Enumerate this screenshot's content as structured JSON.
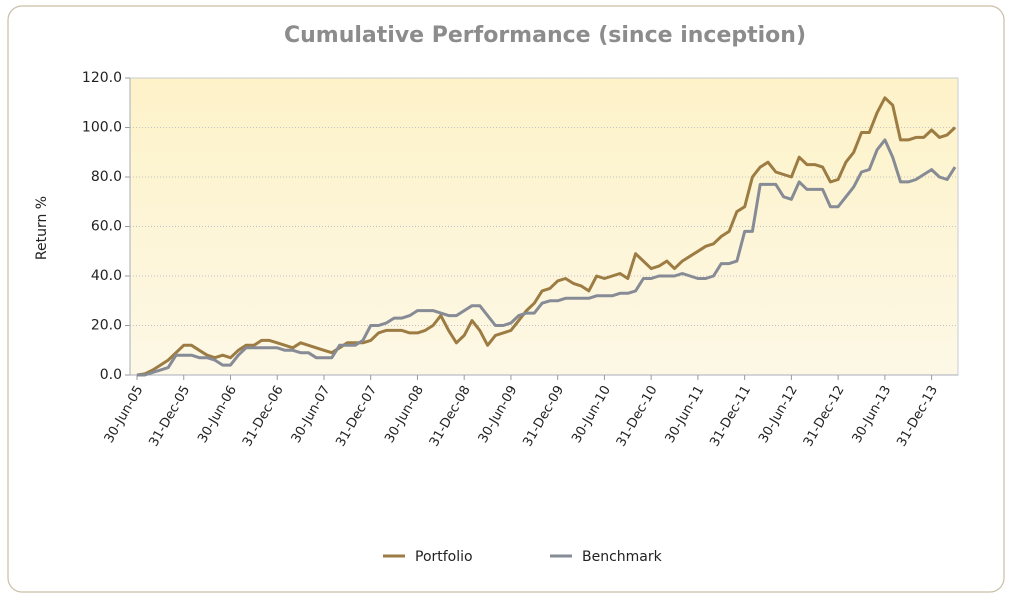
{
  "chart_data": {
    "type": "line",
    "title": "Cumulative Performance (since inception)",
    "y_label": "Return %",
    "categories": [
      "30-Jun-05",
      null,
      null,
      null,
      null,
      null,
      "31-Dec-05",
      null,
      null,
      null,
      null,
      null,
      "30-Jun-06",
      null,
      null,
      null,
      null,
      null,
      "31-Dec-06",
      null,
      null,
      null,
      null,
      null,
      "30-Jun-07",
      null,
      null,
      null,
      null,
      null,
      "31-Dec-07",
      null,
      null,
      null,
      null,
      null,
      "30-Jun-08",
      null,
      null,
      null,
      null,
      null,
      "31-Dec-08",
      null,
      null,
      null,
      null,
      null,
      "30-Jun-09",
      null,
      null,
      null,
      null,
      null,
      "31-Dec-09",
      null,
      null,
      null,
      null,
      null,
      "30-Jun-10",
      null,
      null,
      null,
      null,
      null,
      "31-Dec-10",
      null,
      null,
      null,
      null,
      null,
      "30-Jun-11",
      null,
      null,
      null,
      null,
      null,
      "31-Dec-11",
      null,
      null,
      null,
      null,
      null,
      "30-Jun-12",
      null,
      null,
      null,
      null,
      null,
      "31-Dec-12",
      null,
      null,
      null,
      null,
      null,
      "30-Jun-13",
      null,
      null,
      null,
      null,
      null,
      "31-Dec-13",
      null,
      null,
      null
    ],
    "series": [
      {
        "name": "Portfolio",
        "color": "#9c7c43",
        "values": [
          0,
          0.5,
          2,
          4,
          6,
          9,
          12,
          12,
          10,
          8,
          7,
          8,
          7,
          10,
          12,
          12,
          14,
          14,
          13,
          12,
          11,
          13,
          12,
          11,
          10,
          9,
          11,
          13,
          13,
          13,
          14,
          17,
          18,
          18,
          18,
          17,
          17,
          18,
          20,
          24,
          18,
          13,
          16,
          22,
          18,
          12,
          16,
          17,
          18,
          22,
          26,
          29,
          34,
          35,
          38,
          39,
          37,
          36,
          34,
          40,
          39,
          40,
          41,
          39,
          49,
          46,
          43,
          44,
          46,
          43,
          46,
          48,
          50,
          52,
          53,
          56,
          58,
          66,
          68,
          80,
          84,
          86,
          82,
          81,
          80,
          88,
          85,
          85,
          84,
          78,
          79,
          86,
          90,
          98,
          98,
          106,
          112,
          109,
          95,
          95,
          96,
          96,
          99,
          96,
          97,
          100
        ]
      },
      {
        "name": "Benchmark",
        "color": "#868b95",
        "values": [
          0,
          0,
          1,
          2,
          3,
          8,
          8,
          8,
          7,
          7,
          6,
          4,
          4,
          8,
          11,
          11,
          11,
          11,
          11,
          10,
          10,
          9,
          9,
          7,
          7,
          7,
          12,
          12,
          12,
          14,
          20,
          20,
          21,
          23,
          23,
          24,
          26,
          26,
          26,
          25,
          24,
          24,
          26,
          28,
          28,
          24,
          20,
          20,
          21,
          24,
          25,
          25,
          29,
          30,
          30,
          31,
          31,
          31,
          31,
          32,
          32,
          32,
          33,
          33,
          34,
          39,
          39,
          40,
          40,
          40,
          41,
          40,
          39,
          39,
          40,
          45,
          45,
          46,
          58,
          58,
          77,
          77,
          77,
          72,
          71,
          78,
          75,
          75,
          75,
          68,
          68,
          72,
          76,
          82,
          83,
          91,
          95,
          88,
          78,
          78,
          79,
          81,
          83,
          80,
          79,
          84
        ]
      }
    ],
    "ylim": [
      0,
      120
    ],
    "yticks": [
      {
        "value": 0,
        "label": "0.0"
      },
      {
        "value": 20,
        "label": "20.0"
      },
      {
        "value": 40,
        "label": "40.0"
      },
      {
        "value": 60,
        "label": "60.0"
      },
      {
        "value": 80,
        "label": "80.0"
      },
      {
        "value": 100,
        "label": "100.0"
      },
      {
        "value": 120,
        "label": "120.0"
      }
    ],
    "grid": true
  }
}
